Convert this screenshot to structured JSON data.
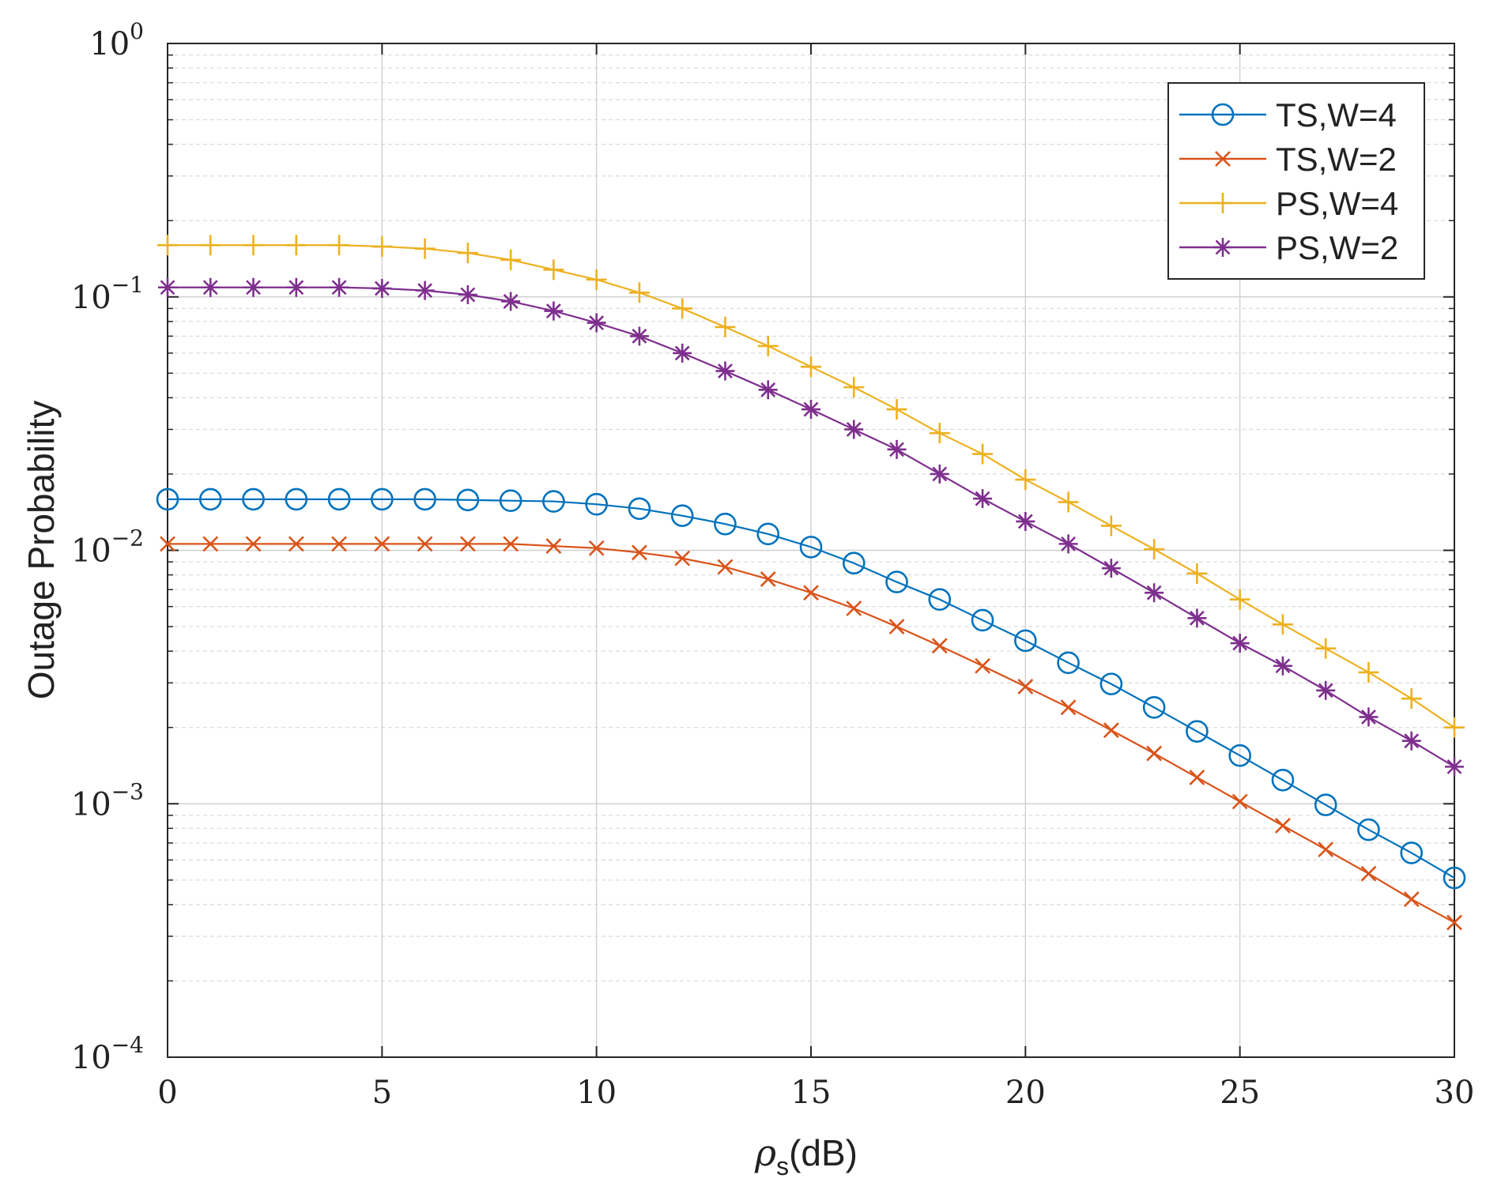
{
  "chart_data": {
    "type": "line",
    "title": "",
    "xlabel": "(dB)",
    "xlabel_symbol": "ρ",
    "xlabel_subscript": "s",
    "ylabel": "Outage Probability",
    "y_scale": "log",
    "xlim": [
      0,
      30
    ],
    "ylim": [
      0.0001,
      1
    ],
    "grid": true,
    "legend_position": "top-right",
    "x_ticks": [
      0,
      5,
      10,
      15,
      20,
      25,
      30
    ],
    "x_tick_labels": [
      "0",
      "5",
      "10",
      "15",
      "20",
      "25",
      "30"
    ],
    "y_ticks": [
      {
        "value": 1,
        "base": "10",
        "exp": "0"
      },
      {
        "value": 0.1,
        "base": "10",
        "exp": "−1"
      },
      {
        "value": 0.01,
        "base": "10",
        "exp": "−2"
      },
      {
        "value": 0.001,
        "base": "10",
        "exp": "−3"
      },
      {
        "value": 0.0001,
        "base": "10",
        "exp": "−4"
      }
    ],
    "x": [
      0,
      1,
      2,
      3,
      4,
      5,
      6,
      7,
      8,
      9,
      10,
      11,
      12,
      13,
      14,
      15,
      16,
      17,
      18,
      19,
      20,
      21,
      22,
      23,
      24,
      25,
      26,
      27,
      28,
      29,
      30
    ],
    "series": [
      {
        "name": "TS,W=4",
        "color": "#0072BD",
        "marker": "circle",
        "values": [
          0.0159,
          0.0159,
          0.0159,
          0.0159,
          0.0159,
          0.0159,
          0.0159,
          0.0158,
          0.0157,
          0.0156,
          0.0152,
          0.0146,
          0.0137,
          0.0127,
          0.0116,
          0.0103,
          0.0089,
          0.0075,
          0.0064,
          0.0053,
          0.0044,
          0.0036,
          0.00297,
          0.0024,
          0.00193,
          0.00155,
          0.00124,
          0.00099,
          0.00079,
          0.00064,
          0.00051
        ]
      },
      {
        "name": "TS,W=2",
        "color": "#D95319",
        "marker": "x",
        "values": [
          0.0106,
          0.0106,
          0.0106,
          0.0106,
          0.0106,
          0.0106,
          0.0106,
          0.0106,
          0.0106,
          0.0104,
          0.0102,
          0.0098,
          0.0093,
          0.0086,
          0.0077,
          0.0068,
          0.0059,
          0.005,
          0.0042,
          0.0035,
          0.0029,
          0.0024,
          0.00195,
          0.00158,
          0.00127,
          0.00102,
          0.00082,
          0.00066,
          0.00053,
          0.00042,
          0.00034
        ]
      },
      {
        "name": "PS,W=4",
        "color": "#EDB120",
        "marker": "plus",
        "values": [
          0.16,
          0.16,
          0.16,
          0.16,
          0.16,
          0.158,
          0.155,
          0.149,
          0.14,
          0.128,
          0.117,
          0.104,
          0.09,
          0.076,
          0.064,
          0.053,
          0.044,
          0.036,
          0.029,
          0.024,
          0.019,
          0.0155,
          0.0125,
          0.0101,
          0.0081,
          0.0064,
          0.0051,
          0.0041,
          0.0033,
          0.0026,
          0.002
        ]
      },
      {
        "name": "PS,W=2",
        "color": "#7E2F8E",
        "marker": "asterisk",
        "values": [
          0.109,
          0.109,
          0.109,
          0.109,
          0.109,
          0.108,
          0.106,
          0.102,
          0.096,
          0.088,
          0.079,
          0.07,
          0.06,
          0.051,
          0.043,
          0.036,
          0.03,
          0.025,
          0.02,
          0.016,
          0.013,
          0.0106,
          0.0085,
          0.0068,
          0.0054,
          0.0043,
          0.0035,
          0.0028,
          0.0022,
          0.00177,
          0.0014
        ]
      }
    ]
  }
}
